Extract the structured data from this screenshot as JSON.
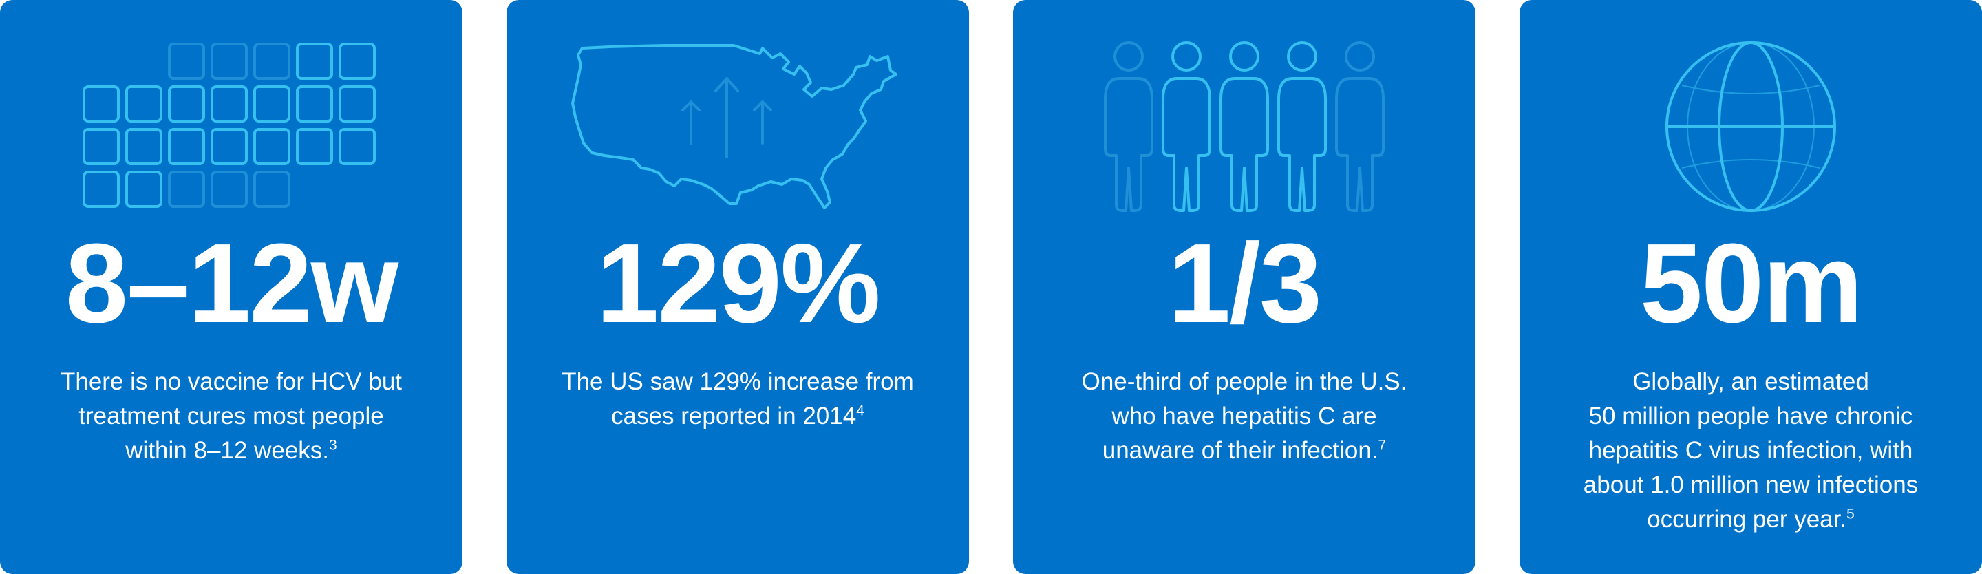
{
  "colors": {
    "card_bg": "#0072c9",
    "icon_stroke": "#35c0f0",
    "icon_faded": "#1f8fd8",
    "text": "#ffffff"
  },
  "cards": [
    {
      "icon": "calendar-grid-icon",
      "stat": "8–12w",
      "lines": [
        "There is no vaccine for HCV but",
        "treatment cures most people",
        "within 8–12 weeks."
      ],
      "sup": "3"
    },
    {
      "icon": "us-map-increase-icon",
      "stat": "129%",
      "lines": [
        "The US saw 129% increase from",
        "cases reported in 2014"
      ],
      "sup": "4"
    },
    {
      "icon": "people-group-icon",
      "stat": "1/3",
      "lines": [
        "One-third of people in the U.S.",
        "who have hepatitis C are",
        "unaware of their infection."
      ],
      "sup": "7"
    },
    {
      "icon": "globe-icon",
      "stat": "50m",
      "lines": [
        "Globally, an estimated",
        "50 million people have chronic",
        "hepatitis C virus infection, with",
        "about 1.0 million new infections",
        "occurring per year."
      ],
      "sup": "5"
    }
  ]
}
